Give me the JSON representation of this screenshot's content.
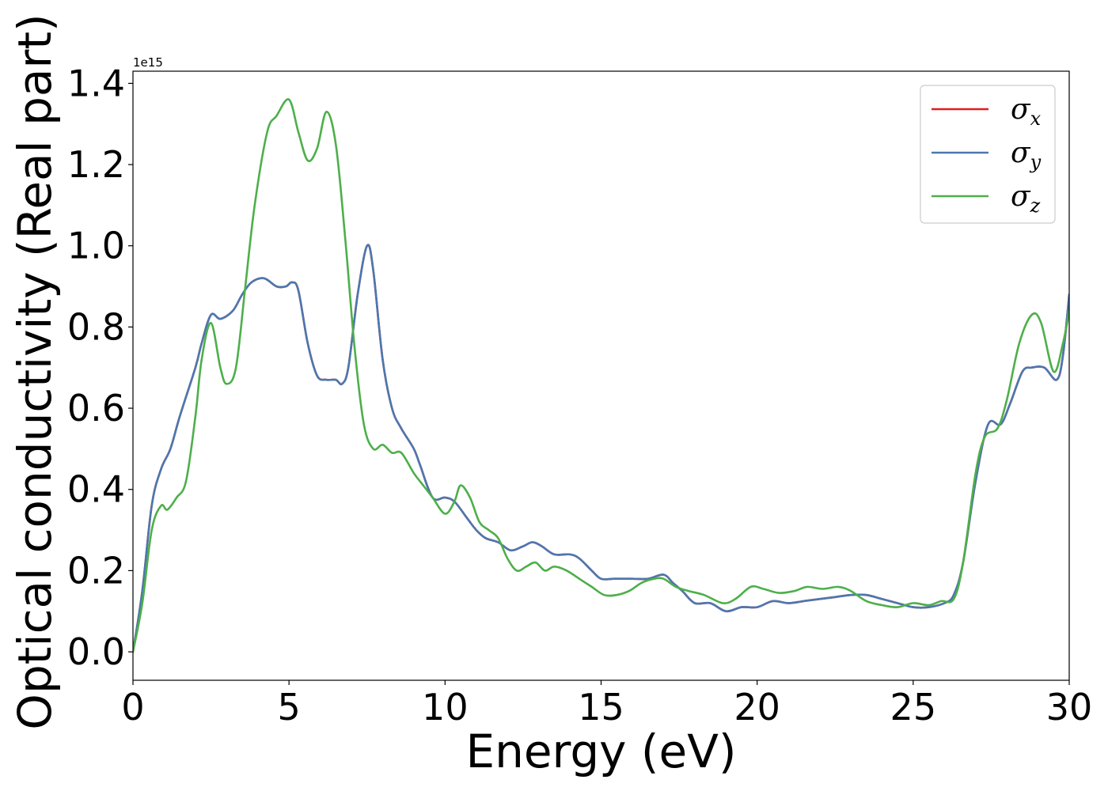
{
  "chart_data": {
    "type": "line",
    "title": "",
    "xlabel": "Energy (eV)",
    "ylabel": "Optical conductivity (Real part)",
    "y_offset_label": "1e15",
    "xlim": [
      0,
      30
    ],
    "ylim": [
      -0.07,
      1.43
    ],
    "x_ticks": [
      0,
      5,
      10,
      15,
      20,
      25,
      30
    ],
    "x_tick_labels": [
      "0",
      "5",
      "10",
      "15",
      "20",
      "25",
      "30"
    ],
    "y_ticks": [
      0.0,
      0.2,
      0.4,
      0.6,
      0.8,
      1.0,
      1.2,
      1.4
    ],
    "y_tick_labels": [
      "0.0",
      "0.2",
      "0.4",
      "0.6",
      "0.8",
      "1.0",
      "1.2",
      "1.4"
    ],
    "grid": false,
    "legend_position": "top-right",
    "series": [
      {
        "name": "σx",
        "symbol": "σ",
        "subscript": "x",
        "color": "#e41a1c",
        "points": [
          [
            0,
            0.0
          ],
          [
            0.3,
            0.15
          ],
          [
            0.6,
            0.36
          ],
          [
            0.9,
            0.45
          ],
          [
            1.2,
            0.5
          ],
          [
            1.5,
            0.58
          ],
          [
            2.0,
            0.7
          ],
          [
            2.2,
            0.76
          ],
          [
            2.5,
            0.83
          ],
          [
            2.8,
            0.82
          ],
          [
            3.2,
            0.84
          ],
          [
            3.5,
            0.88
          ],
          [
            3.8,
            0.91
          ],
          [
            4.2,
            0.92
          ],
          [
            4.6,
            0.9
          ],
          [
            4.9,
            0.9
          ],
          [
            5.1,
            0.91
          ],
          [
            5.3,
            0.89
          ],
          [
            5.6,
            0.76
          ],
          [
            5.9,
            0.68
          ],
          [
            6.2,
            0.67
          ],
          [
            6.5,
            0.67
          ],
          [
            6.7,
            0.66
          ],
          [
            6.9,
            0.7
          ],
          [
            7.2,
            0.88
          ],
          [
            7.5,
            1.0
          ],
          [
            7.7,
            0.94
          ],
          [
            8.0,
            0.72
          ],
          [
            8.3,
            0.6
          ],
          [
            8.6,
            0.55
          ],
          [
            9.0,
            0.5
          ],
          [
            9.2,
            0.46
          ],
          [
            9.6,
            0.38
          ],
          [
            10.0,
            0.38
          ],
          [
            10.3,
            0.37
          ],
          [
            10.7,
            0.33
          ],
          [
            11.0,
            0.3
          ],
          [
            11.3,
            0.28
          ],
          [
            11.7,
            0.27
          ],
          [
            12.1,
            0.25
          ],
          [
            12.5,
            0.26
          ],
          [
            12.8,
            0.27
          ],
          [
            13.1,
            0.26
          ],
          [
            13.5,
            0.24
          ],
          [
            14.0,
            0.24
          ],
          [
            14.3,
            0.23
          ],
          [
            14.7,
            0.2
          ],
          [
            15.0,
            0.18
          ],
          [
            15.4,
            0.18
          ],
          [
            15.7,
            0.18
          ],
          [
            16.0,
            0.18
          ],
          [
            16.5,
            0.18
          ],
          [
            17.0,
            0.19
          ],
          [
            17.3,
            0.17
          ],
          [
            17.6,
            0.15
          ],
          [
            18.0,
            0.12
          ],
          [
            18.5,
            0.12
          ],
          [
            19.0,
            0.1
          ],
          [
            19.5,
            0.11
          ],
          [
            20.0,
            0.11
          ],
          [
            20.5,
            0.125
          ],
          [
            21.0,
            0.12
          ],
          [
            21.5,
            0.125
          ],
          [
            22.0,
            0.13
          ],
          [
            22.5,
            0.135
          ],
          [
            23.0,
            0.14
          ],
          [
            23.5,
            0.14
          ],
          [
            24.0,
            0.13
          ],
          [
            24.5,
            0.12
          ],
          [
            25.0,
            0.11
          ],
          [
            25.5,
            0.11
          ],
          [
            26.0,
            0.12
          ],
          [
            26.3,
            0.14
          ],
          [
            26.6,
            0.22
          ],
          [
            27.0,
            0.42
          ],
          [
            27.4,
            0.56
          ],
          [
            27.8,
            0.56
          ],
          [
            28.1,
            0.61
          ],
          [
            28.5,
            0.69
          ],
          [
            28.8,
            0.7
          ],
          [
            29.2,
            0.7
          ],
          [
            29.6,
            0.67
          ],
          [
            29.8,
            0.73
          ],
          [
            30.0,
            0.88
          ]
        ]
      },
      {
        "name": "σy",
        "symbol": "σ",
        "subscript": "y",
        "color": "#4a78b0",
        "points": [
          [
            0,
            0.0
          ],
          [
            0.3,
            0.15
          ],
          [
            0.6,
            0.36
          ],
          [
            0.9,
            0.45
          ],
          [
            1.2,
            0.5
          ],
          [
            1.5,
            0.58
          ],
          [
            2.0,
            0.7
          ],
          [
            2.2,
            0.76
          ],
          [
            2.5,
            0.83
          ],
          [
            2.8,
            0.82
          ],
          [
            3.2,
            0.84
          ],
          [
            3.5,
            0.88
          ],
          [
            3.8,
            0.91
          ],
          [
            4.2,
            0.92
          ],
          [
            4.6,
            0.9
          ],
          [
            4.9,
            0.9
          ],
          [
            5.1,
            0.91
          ],
          [
            5.3,
            0.89
          ],
          [
            5.6,
            0.76
          ],
          [
            5.9,
            0.68
          ],
          [
            6.2,
            0.67
          ],
          [
            6.5,
            0.67
          ],
          [
            6.7,
            0.66
          ],
          [
            6.9,
            0.7
          ],
          [
            7.2,
            0.88
          ],
          [
            7.5,
            1.0
          ],
          [
            7.7,
            0.94
          ],
          [
            8.0,
            0.72
          ],
          [
            8.3,
            0.6
          ],
          [
            8.6,
            0.55
          ],
          [
            9.0,
            0.5
          ],
          [
            9.2,
            0.46
          ],
          [
            9.6,
            0.38
          ],
          [
            10.0,
            0.38
          ],
          [
            10.3,
            0.37
          ],
          [
            10.7,
            0.33
          ],
          [
            11.0,
            0.3
          ],
          [
            11.3,
            0.28
          ],
          [
            11.7,
            0.27
          ],
          [
            12.1,
            0.25
          ],
          [
            12.5,
            0.26
          ],
          [
            12.8,
            0.27
          ],
          [
            13.1,
            0.26
          ],
          [
            13.5,
            0.24
          ],
          [
            14.0,
            0.24
          ],
          [
            14.3,
            0.23
          ],
          [
            14.7,
            0.2
          ],
          [
            15.0,
            0.18
          ],
          [
            15.4,
            0.18
          ],
          [
            15.7,
            0.18
          ],
          [
            16.0,
            0.18
          ],
          [
            16.5,
            0.18
          ],
          [
            17.0,
            0.19
          ],
          [
            17.3,
            0.17
          ],
          [
            17.6,
            0.15
          ],
          [
            18.0,
            0.12
          ],
          [
            18.5,
            0.12
          ],
          [
            19.0,
            0.1
          ],
          [
            19.5,
            0.11
          ],
          [
            20.0,
            0.11
          ],
          [
            20.5,
            0.125
          ],
          [
            21.0,
            0.12
          ],
          [
            21.5,
            0.125
          ],
          [
            22.0,
            0.13
          ],
          [
            22.5,
            0.135
          ],
          [
            23.0,
            0.14
          ],
          [
            23.5,
            0.14
          ],
          [
            24.0,
            0.13
          ],
          [
            24.5,
            0.12
          ],
          [
            25.0,
            0.11
          ],
          [
            25.5,
            0.11
          ],
          [
            26.0,
            0.12
          ],
          [
            26.3,
            0.14
          ],
          [
            26.6,
            0.22
          ],
          [
            27.0,
            0.42
          ],
          [
            27.4,
            0.56
          ],
          [
            27.8,
            0.56
          ],
          [
            28.1,
            0.61
          ],
          [
            28.5,
            0.69
          ],
          [
            28.8,
            0.7
          ],
          [
            29.2,
            0.7
          ],
          [
            29.6,
            0.67
          ],
          [
            29.8,
            0.73
          ],
          [
            30.0,
            0.88
          ]
        ]
      },
      {
        "name": "σz",
        "symbol": "σ",
        "subscript": "z",
        "color": "#4daf4a",
        "points": [
          [
            0,
            0.0
          ],
          [
            0.3,
            0.12
          ],
          [
            0.6,
            0.3
          ],
          [
            0.9,
            0.36
          ],
          [
            1.1,
            0.35
          ],
          [
            1.4,
            0.38
          ],
          [
            1.7,
            0.42
          ],
          [
            2.0,
            0.58
          ],
          [
            2.2,
            0.72
          ],
          [
            2.5,
            0.81
          ],
          [
            2.8,
            0.7
          ],
          [
            3.0,
            0.66
          ],
          [
            3.3,
            0.7
          ],
          [
            3.6,
            0.9
          ],
          [
            3.9,
            1.1
          ],
          [
            4.3,
            1.28
          ],
          [
            4.6,
            1.32
          ],
          [
            5.0,
            1.36
          ],
          [
            5.3,
            1.28
          ],
          [
            5.6,
            1.21
          ],
          [
            5.9,
            1.24
          ],
          [
            6.2,
            1.33
          ],
          [
            6.5,
            1.25
          ],
          [
            6.8,
            1.02
          ],
          [
            7.1,
            0.75
          ],
          [
            7.4,
            0.56
          ],
          [
            7.7,
            0.5
          ],
          [
            8.0,
            0.51
          ],
          [
            8.3,
            0.49
          ],
          [
            8.6,
            0.49
          ],
          [
            9.0,
            0.44
          ],
          [
            9.3,
            0.41
          ],
          [
            9.6,
            0.38
          ],
          [
            10.0,
            0.34
          ],
          [
            10.3,
            0.37
          ],
          [
            10.5,
            0.41
          ],
          [
            10.8,
            0.38
          ],
          [
            11.1,
            0.32
          ],
          [
            11.4,
            0.3
          ],
          [
            11.7,
            0.28
          ],
          [
            12.0,
            0.23
          ],
          [
            12.3,
            0.2
          ],
          [
            12.6,
            0.21
          ],
          [
            12.9,
            0.22
          ],
          [
            13.2,
            0.2
          ],
          [
            13.5,
            0.21
          ],
          [
            13.9,
            0.2
          ],
          [
            14.3,
            0.18
          ],
          [
            14.7,
            0.16
          ],
          [
            15.1,
            0.14
          ],
          [
            15.5,
            0.14
          ],
          [
            15.9,
            0.15
          ],
          [
            16.3,
            0.17
          ],
          [
            16.7,
            0.18
          ],
          [
            17.0,
            0.18
          ],
          [
            17.4,
            0.16
          ],
          [
            17.8,
            0.15
          ],
          [
            18.3,
            0.14
          ],
          [
            18.9,
            0.12
          ],
          [
            19.3,
            0.13
          ],
          [
            19.8,
            0.16
          ],
          [
            20.2,
            0.155
          ],
          [
            20.7,
            0.145
          ],
          [
            21.2,
            0.15
          ],
          [
            21.6,
            0.16
          ],
          [
            22.1,
            0.155
          ],
          [
            22.6,
            0.16
          ],
          [
            23.0,
            0.15
          ],
          [
            23.5,
            0.125
          ],
          [
            24.0,
            0.115
          ],
          [
            24.5,
            0.11
          ],
          [
            25.0,
            0.12
          ],
          [
            25.5,
            0.115
          ],
          [
            25.9,
            0.125
          ],
          [
            26.3,
            0.13
          ],
          [
            26.6,
            0.22
          ],
          [
            27.0,
            0.44
          ],
          [
            27.3,
            0.53
          ],
          [
            27.7,
            0.55
          ],
          [
            28.0,
            0.62
          ],
          [
            28.4,
            0.76
          ],
          [
            28.8,
            0.83
          ],
          [
            29.1,
            0.81
          ],
          [
            29.5,
            0.69
          ],
          [
            29.8,
            0.76
          ],
          [
            30.0,
            0.84
          ]
        ]
      }
    ]
  }
}
